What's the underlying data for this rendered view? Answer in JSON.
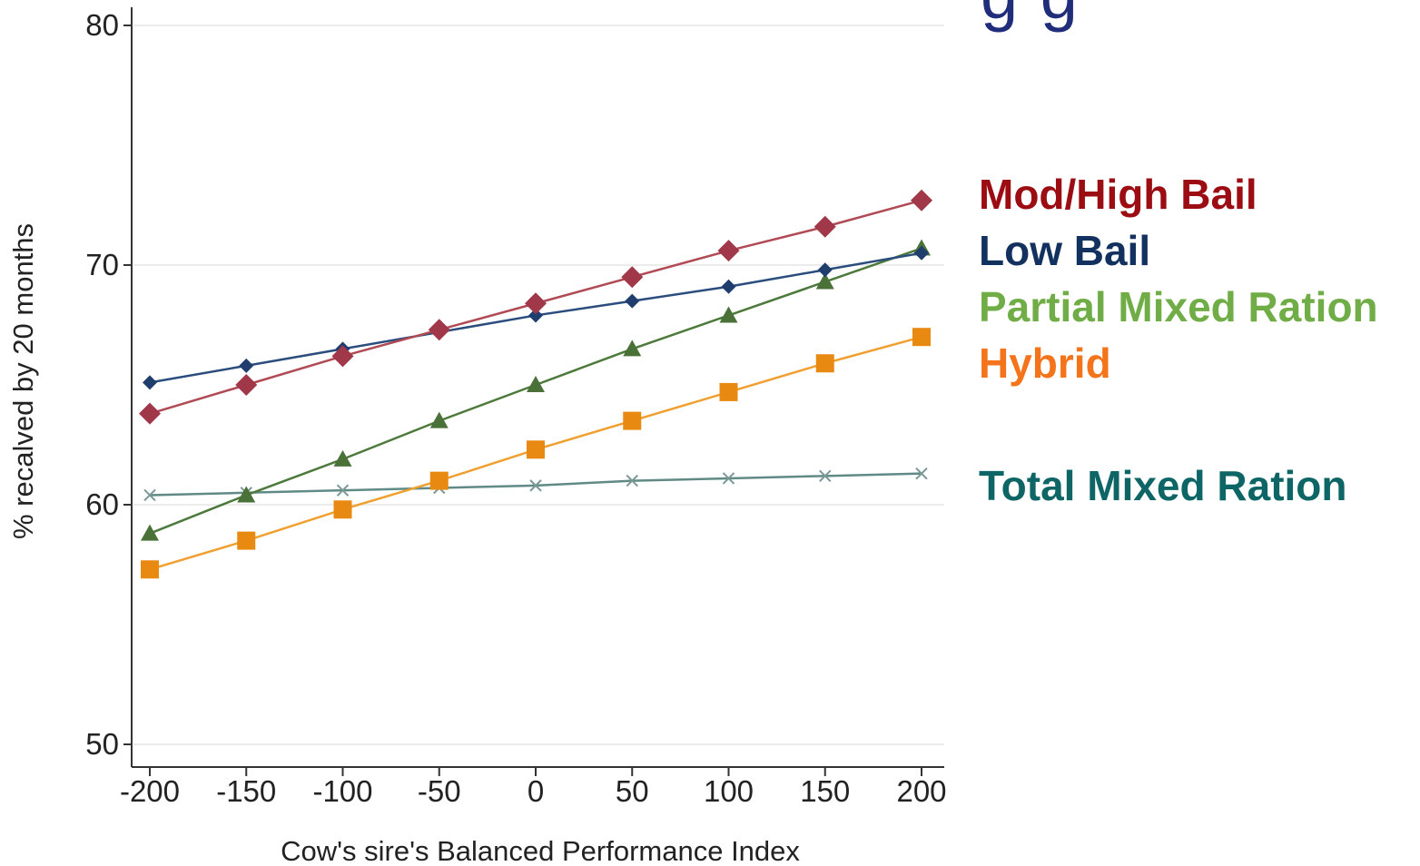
{
  "chart_data": {
    "type": "line",
    "title": "",
    "xlabel": "Cow's sire's Balanced Performance Index",
    "ylabel": "% recalved by 20 months",
    "x": [
      -200,
      -150,
      -100,
      -50,
      0,
      50,
      100,
      150,
      200
    ],
    "x_ticks": [
      "-200",
      "-150",
      "-100",
      "-50",
      "0",
      "50",
      "100",
      "150",
      "200"
    ],
    "y_ticks": [
      "50",
      "60",
      "70",
      "80"
    ],
    "xlim": [
      -200,
      200
    ],
    "ylim": [
      50,
      80
    ],
    "grid": "horizontal",
    "legend_placement": "right",
    "series": [
      {
        "name": "Mod/High Bail",
        "label_color": "#9b0d12",
        "line_color": "#b04a55",
        "marker_color": "#a0384a",
        "marker": "diamond",
        "values": [
          63.8,
          65.0,
          66.2,
          67.3,
          68.4,
          69.5,
          70.6,
          71.6,
          72.7
        ]
      },
      {
        "name": "Low Bail",
        "label_color": "#13315f",
        "line_color": "#2b4d7e",
        "marker_color": "#1f3e6e",
        "marker": "small-diamond",
        "values": [
          65.1,
          65.8,
          66.5,
          67.2,
          67.9,
          68.5,
          69.1,
          69.8,
          70.5
        ]
      },
      {
        "name": "Partial Mixed Ration",
        "label_color": "#70ad47",
        "line_color": "#4d7a3c",
        "marker_color": "#4a7238",
        "marker": "triangle",
        "values": [
          58.8,
          60.4,
          61.9,
          63.5,
          65.0,
          66.5,
          67.9,
          69.3,
          70.7
        ]
      },
      {
        "name": "Hybrid",
        "label_color": "#f4741b",
        "line_color": "#f0a030",
        "marker_color": "#e88a12",
        "marker": "square",
        "values": [
          57.3,
          58.5,
          59.8,
          61.0,
          62.3,
          63.5,
          64.7,
          65.9,
          67.0
        ]
      },
      {
        "name": "Total Mixed Ration",
        "label_color": "#0e6565",
        "line_color": "#5f8a86",
        "marker_color": "#7b9896",
        "marker": "x",
        "values": [
          60.4,
          60.5,
          60.6,
          60.7,
          60.8,
          61.0,
          61.1,
          61.2,
          61.3
        ]
      }
    ]
  },
  "header_fragment": "g         g"
}
